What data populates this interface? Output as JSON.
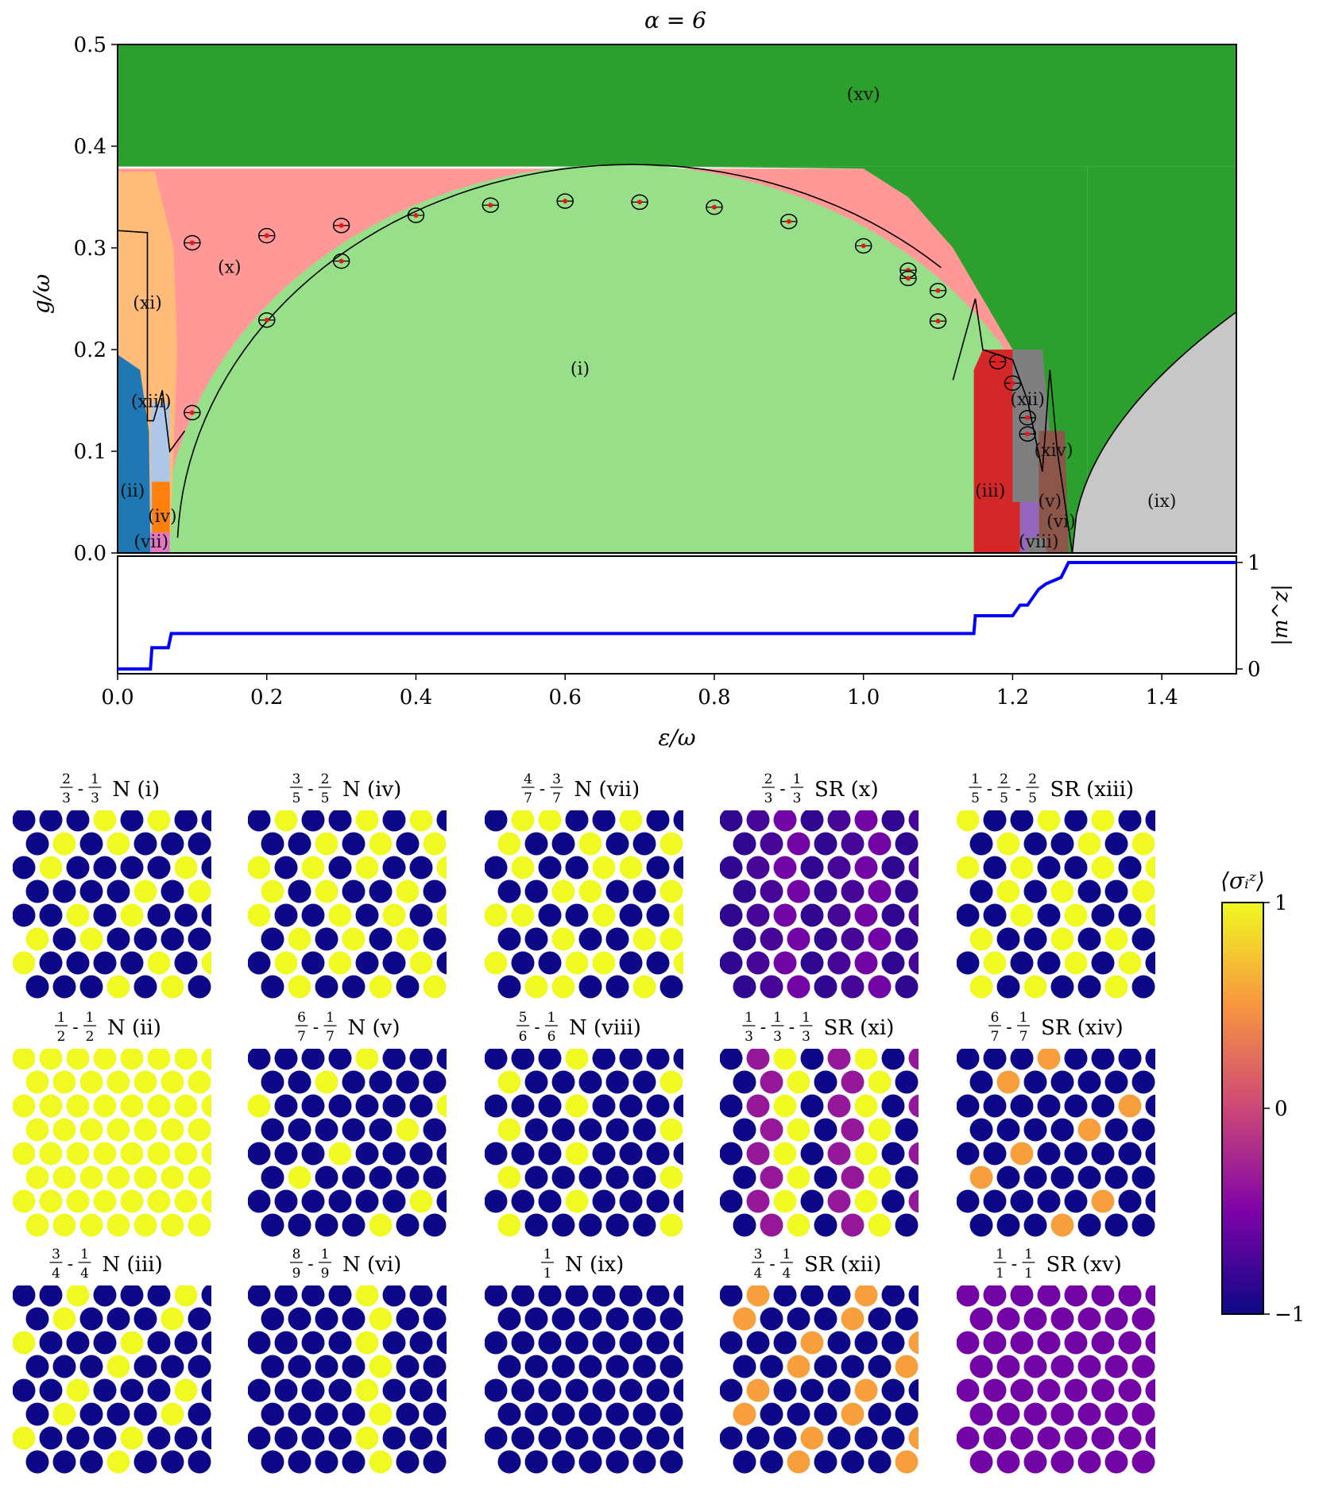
{
  "title": "α = 6",
  "chart_data": [
    {
      "type": "heatmap",
      "subtype": "phase-diagram",
      "title": "α = 6",
      "xlabel": "ε/ω",
      "ylabel": "g/ω",
      "xlim": [
        0.0,
        1.5
      ],
      "ylim": [
        0.0,
        0.5
      ],
      "x_ticks": [
        "0.0",
        "0.2",
        "0.4",
        "0.6",
        "0.8",
        "1.0",
        "1.2",
        "1.4"
      ],
      "y_ticks": [
        "0.0",
        "0.1",
        "0.2",
        "0.3",
        "0.4",
        "0.5"
      ],
      "regions": [
        {
          "id": "i",
          "label": "(i)",
          "color": "#98df8a",
          "label_at": [
            0.62,
            0.18
          ]
        },
        {
          "id": "ii",
          "label": "(ii)",
          "color": "#1f77b4",
          "label_at": [
            0.02,
            0.06
          ]
        },
        {
          "id": "iii",
          "label": "(iii)",
          "color": "#d62728",
          "label_at": [
            1.17,
            0.06
          ]
        },
        {
          "id": "iv",
          "label": "(iv)",
          "color": "#ff7f0e",
          "label_at": [
            0.06,
            0.035
          ]
        },
        {
          "id": "v",
          "label": "(v)",
          "color": "#9467bd",
          "label_at": [
            1.25,
            0.05
          ]
        },
        {
          "id": "vi",
          "label": "(vi)",
          "color": "#8c564b",
          "label_at": [
            1.265,
            0.03
          ]
        },
        {
          "id": "vii",
          "label": "(vii)",
          "color": "#e377c2",
          "label_at": [
            0.045,
            0.01
          ]
        },
        {
          "id": "viii",
          "label": "(viii)",
          "color": "#7f7f7f",
          "label_at": [
            1.235,
            0.01
          ]
        },
        {
          "id": "ix",
          "label": "(ix)",
          "color": "#c7c7c7",
          "label_at": [
            1.4,
            0.05
          ]
        },
        {
          "id": "x",
          "label": "(x)",
          "color": "#ff9896",
          "label_at": [
            0.15,
            0.28
          ]
        },
        {
          "id": "xi",
          "label": "(xi)",
          "color": "#ffbb78",
          "label_at": [
            0.04,
            0.245
          ]
        },
        {
          "id": "xii",
          "label": "(xii)",
          "color": "#7f7f7f",
          "label_at": [
            1.22,
            0.15
          ]
        },
        {
          "id": "xiii",
          "label": "(xiii)",
          "color": "#aec7e8",
          "label_at": [
            0.045,
            0.148
          ]
        },
        {
          "id": "xiv",
          "label": "(xiv)",
          "color": "#8c564b",
          "label_at": [
            1.255,
            0.1
          ]
        },
        {
          "id": "xv",
          "label": "(xv)",
          "color": "#2ca02c",
          "label_at": [
            1.0,
            0.45
          ]
        }
      ],
      "boundary_markers": [
        {
          "x": 0.1,
          "y": 0.305
        },
        {
          "x": 0.2,
          "y": 0.312
        },
        {
          "x": 0.3,
          "y": 0.322
        },
        {
          "x": 0.4,
          "y": 0.332
        },
        {
          "x": 0.5,
          "y": 0.342
        },
        {
          "x": 0.6,
          "y": 0.346
        },
        {
          "x": 0.7,
          "y": 0.345
        },
        {
          "x": 0.8,
          "y": 0.34
        },
        {
          "x": 0.9,
          "y": 0.326
        },
        {
          "x": 1.0,
          "y": 0.302
        },
        {
          "x": 1.06,
          "y": 0.278
        },
        {
          "x": 1.1,
          "y": 0.258
        },
        {
          "x": 0.1,
          "y": 0.138
        },
        {
          "x": 0.2,
          "y": 0.229
        },
        {
          "x": 0.3,
          "y": 0.287
        },
        {
          "x": 1.06,
          "y": 0.27
        },
        {
          "x": 1.1,
          "y": 0.228
        },
        {
          "x": 1.18,
          "y": 0.188
        },
        {
          "x": 1.2,
          "y": 0.167
        },
        {
          "x": 1.22,
          "y": 0.133
        },
        {
          "x": 1.22,
          "y": 0.117
        }
      ],
      "grid": false,
      "legend": "none"
    },
    {
      "type": "line",
      "xlabel": "ε/ω",
      "ylabel": "|m^z|",
      "xlim": [
        0.0,
        1.5
      ],
      "ylim": [
        0,
        1
      ],
      "y_ticks": [
        "0",
        "1"
      ],
      "x": [
        0.0,
        0.044,
        0.046,
        0.068,
        0.072,
        1.148,
        1.15,
        1.2,
        1.21,
        1.22,
        1.235,
        1.245,
        1.265,
        1.275,
        1.5
      ],
      "values": [
        0.0,
        0.0,
        0.2,
        0.2,
        0.333,
        0.333,
        0.5,
        0.5,
        0.6,
        0.6,
        0.75,
        0.8,
        0.86,
        1.0,
        1.0
      ],
      "color": "#0000ff"
    }
  ],
  "lattice": {
    "colorbar_label": "⟨σᵢᶻ⟩",
    "colorbar_ticks": [
      "1",
      "0",
      "−1"
    ],
    "panels": [
      {
        "id": "i",
        "title": "N (i)",
        "fracs": [
          [
            "2",
            "3"
          ],
          [
            "1",
            "3"
          ]
        ],
        "values": [
          -1,
          -1,
          -1,
          1,
          -1,
          1,
          -1
        ]
      },
      {
        "id": "iv",
        "title": "N (iv)",
        "fracs": [
          [
            "3",
            "5"
          ],
          [
            "2",
            "5"
          ]
        ],
        "values": [
          -1,
          1,
          -1,
          -1,
          1,
          -1,
          1
        ]
      },
      {
        "id": "vii",
        "title": "N (vii)",
        "fracs": [
          [
            "4",
            "7"
          ],
          [
            "3",
            "7"
          ]
        ],
        "values": [
          -1,
          1,
          1,
          -1,
          -1,
          1,
          -1
        ]
      },
      {
        "id": "x",
        "title": "SR (x)",
        "fracs": [
          [
            "2",
            "3"
          ],
          [
            "1",
            "3"
          ]
        ],
        "values": [
          -0.85,
          -0.75,
          -0.55
        ]
      },
      {
        "id": "xiii",
        "title": "SR (xiii)",
        "fracs": [
          [
            "1",
            "5"
          ],
          [
            "2",
            "5"
          ],
          [
            "2",
            "5"
          ]
        ],
        "values": [
          1,
          -1,
          -1,
          1,
          -1
        ]
      },
      {
        "id": "ii",
        "title": "N (ii)",
        "fracs": [
          [
            "1",
            "2"
          ],
          [
            "1",
            "2"
          ]
        ],
        "values": [
          1,
          1
        ]
      },
      {
        "id": "v",
        "title": "N (v)",
        "fracs": [
          [
            "6",
            "7"
          ],
          [
            "1",
            "7"
          ]
        ],
        "values": [
          -1,
          -1,
          -1,
          -1,
          1,
          -1,
          -1
        ]
      },
      {
        "id": "viii",
        "title": "N (viii)",
        "fracs": [
          [
            "5",
            "6"
          ],
          [
            "1",
            "6"
          ]
        ],
        "values": [
          -1,
          -1,
          -1,
          1,
          -1,
          -1
        ]
      },
      {
        "id": "xi",
        "title": "SR (xi)",
        "fracs": [
          [
            "1",
            "3"
          ],
          [
            "1",
            "3"
          ],
          [
            "1",
            "3"
          ]
        ],
        "values": [
          -1,
          -0.35,
          1
        ]
      },
      {
        "id": "xiv",
        "title": "SR (xiv)",
        "fracs": [
          [
            "6",
            "7"
          ],
          [
            "1",
            "7"
          ]
        ],
        "values": [
          -1,
          -1,
          -1,
          0.55,
          -1,
          -1,
          -1
        ]
      },
      {
        "id": "iii",
        "title": "N (iii)",
        "fracs": [
          [
            "3",
            "4"
          ],
          [
            "1",
            "4"
          ]
        ],
        "values": [
          -1,
          -1,
          1,
          -1
        ]
      },
      {
        "id": "vi",
        "title": "N (vi)",
        "fracs": [
          [
            "8",
            "9"
          ],
          [
            "1",
            "9"
          ]
        ],
        "values": [
          -1,
          -1,
          -1,
          -1,
          1,
          -1,
          -1,
          -1,
          -1
        ]
      },
      {
        "id": "ix",
        "title": "N (ix)",
        "fracs": [
          [
            "1",
            "1"
          ]
        ],
        "values": [
          -1
        ]
      },
      {
        "id": "xii",
        "title": "SR (xii)",
        "fracs": [
          [
            "3",
            "4"
          ],
          [
            "1",
            "4"
          ]
        ],
        "values": [
          -1,
          0.55,
          -1,
          -1
        ]
      },
      {
        "id": "xv",
        "title": "SR (xv)",
        "fracs": [
          [
            "1",
            "1"
          ],
          [
            "1",
            "1"
          ]
        ],
        "values": [
          -0.55
        ]
      }
    ]
  }
}
